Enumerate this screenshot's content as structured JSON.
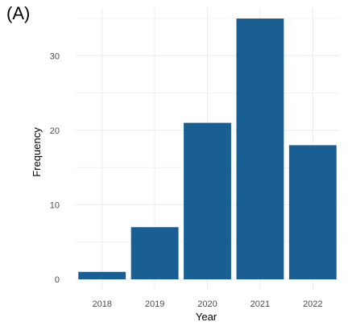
{
  "panel_label": "(A)",
  "chart_data": {
    "type": "bar",
    "categories": [
      "2018",
      "2019",
      "2020",
      "2021",
      "2022"
    ],
    "values": [
      1,
      7,
      21,
      35,
      18
    ],
    "title": "",
    "xlabel": "Year",
    "ylabel": "Frequency",
    "ylim": [
      0,
      37
    ],
    "yticks": [
      0,
      10,
      20,
      30
    ],
    "grid": true,
    "colors": {
      "bar": "#1a5f94",
      "grid": "#ebebeb",
      "tick_text": "#4d4d4d",
      "axis_title": "#000000"
    }
  }
}
